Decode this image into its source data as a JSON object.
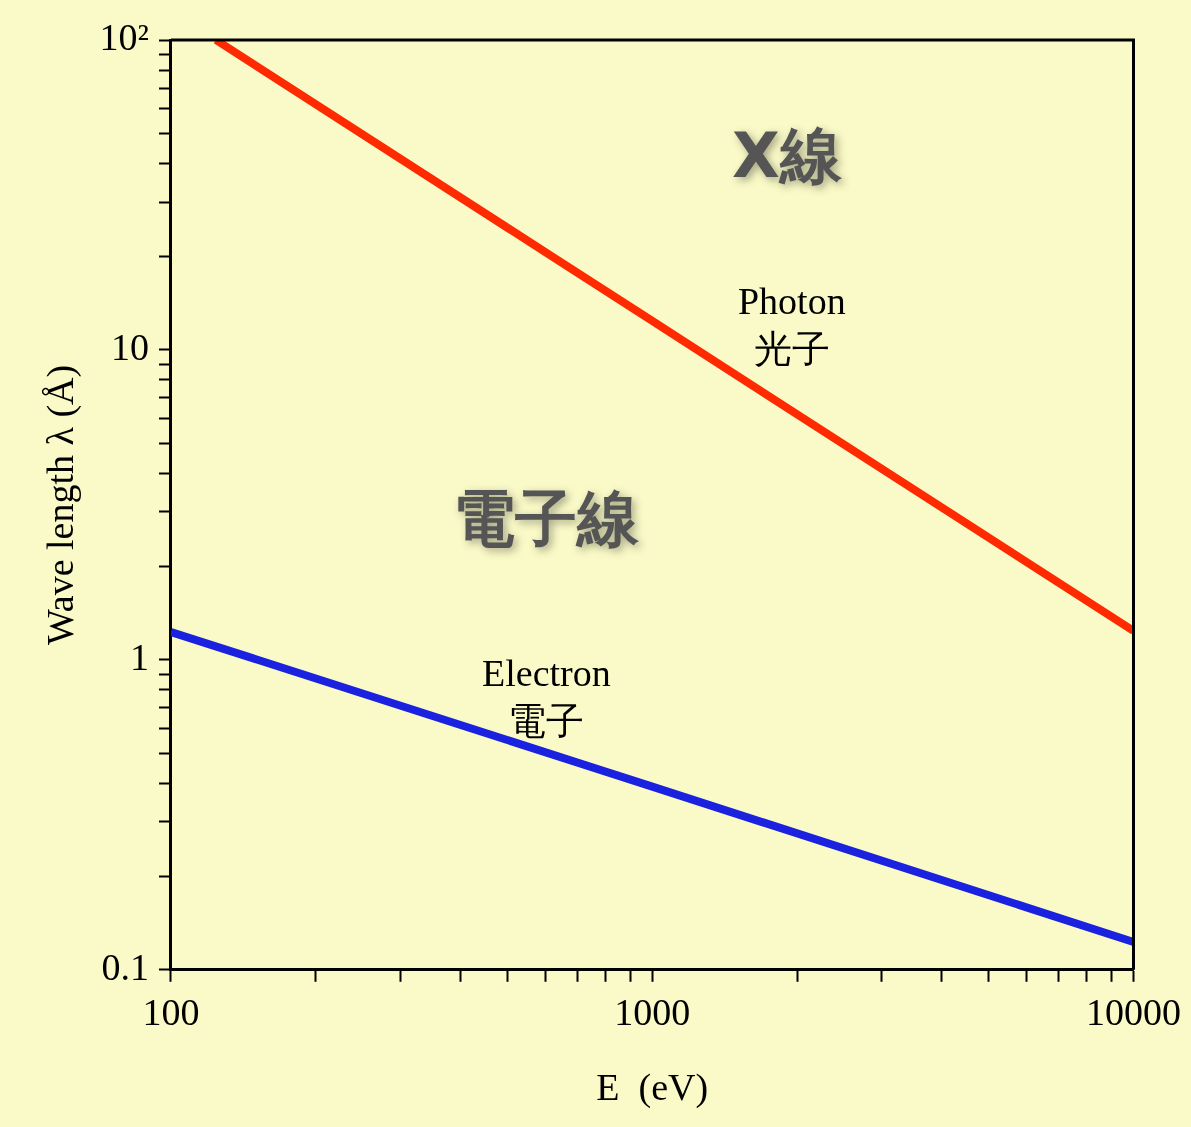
{
  "chart_data": {
    "type": "line",
    "xlabel": "E  (eV)",
    "ylabel": "Wave length λ (Å)",
    "log": "xy",
    "xlim": [
      100,
      10000
    ],
    "ylim": [
      0.1,
      100
    ],
    "xticks": [
      100,
      {
        "value": 200,
        "label": null
      },
      {
        "value": 300,
        "label": null
      },
      {
        "value": 400,
        "label": null
      },
      {
        "value": 500,
        "label": null
      },
      {
        "value": 600,
        "label": null
      },
      {
        "value": 700,
        "label": null
      },
      {
        "value": 800,
        "label": null
      },
      {
        "value": 900,
        "label": null
      },
      1000,
      {
        "value": 2000,
        "label": null
      },
      {
        "value": 3000,
        "label": null
      },
      {
        "value": 4000,
        "label": null
      },
      {
        "value": 5000,
        "label": null
      },
      {
        "value": 6000,
        "label": null
      },
      {
        "value": 7000,
        "label": null
      },
      {
        "value": 8000,
        "label": null
      },
      {
        "value": 9000,
        "label": null
      },
      10000
    ],
    "yticks": [
      0.1,
      {
        "value": 0.2,
        "label": null
      },
      {
        "value": 0.3,
        "label": null
      },
      {
        "value": 0.4,
        "label": null
      },
      {
        "value": 0.5,
        "label": null
      },
      {
        "value": 0.6,
        "label": null
      },
      {
        "value": 0.7,
        "label": null
      },
      {
        "value": 0.8,
        "label": null
      },
      {
        "value": 0.9,
        "label": null
      },
      1,
      {
        "value": 2,
        "label": null
      },
      {
        "value": 3,
        "label": null
      },
      {
        "value": 4,
        "label": null
      },
      {
        "value": 5,
        "label": null
      },
      {
        "value": 6,
        "label": null
      },
      {
        "value": 7,
        "label": null
      },
      {
        "value": 8,
        "label": null
      },
      {
        "value": 9,
        "label": null
      },
      10,
      {
        "value": 20,
        "label": null
      },
      {
        "value": 30,
        "label": null
      },
      {
        "value": 40,
        "label": null
      },
      {
        "value": 50,
        "label": null
      },
      {
        "value": 60,
        "label": null
      },
      {
        "value": 70,
        "label": null
      },
      {
        "value": 80,
        "label": null
      },
      {
        "value": 90,
        "label": null
      },
      {
        "value": 100,
        "label": "10²"
      }
    ],
    "series": [
      {
        "color": "#ff2a00",
        "x": [
          124,
          1000,
          10000
        ],
        "values": [
          100,
          12.4,
          1.24
        ]
      },
      {
        "color": "#1a22e0",
        "x": [
          100,
          1000,
          10000
        ],
        "values": [
          1.23,
          0.39,
          0.123
        ]
      }
    ],
    "annotations": [
      "X線",
      "Photon\n光子",
      "電子線",
      "Electron\n電子"
    ],
    "grid": false,
    "legend": false
  }
}
